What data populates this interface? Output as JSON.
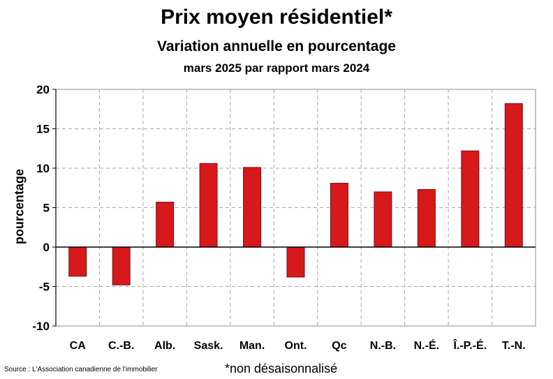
{
  "chart_data": {
    "type": "bar",
    "title": "Prix moyen résidentiel*",
    "subtitle": "Variation annuelle en pourcentage",
    "subtitle2": "mars 2025 par rapport mars 2024",
    "xlabel": "",
    "ylabel": "pourcentage",
    "categories": [
      "CA",
      "C.-B.",
      "Alb.",
      "Sask.",
      "Man.",
      "Ont.",
      "Qc",
      "N.-B.",
      "N.-É.",
      "Î.-P.-É.",
      "T.-N."
    ],
    "values": [
      -3.7,
      -4.8,
      5.7,
      10.6,
      10.1,
      -3.8,
      8.1,
      7.0,
      7.3,
      12.2,
      18.2
    ],
    "ylim": [
      -10,
      20
    ],
    "yticks": [
      "20",
      "15",
      "10",
      "5",
      "0",
      "-5",
      "-10"
    ],
    "grid": true,
    "legend": "none",
    "bar_color": "#d7191c",
    "bar_stroke": "#7a0e10"
  },
  "footer": {
    "source": "Source : L'Association canadienne de l'immobilier",
    "note": "*non désaisonnalisé"
  }
}
